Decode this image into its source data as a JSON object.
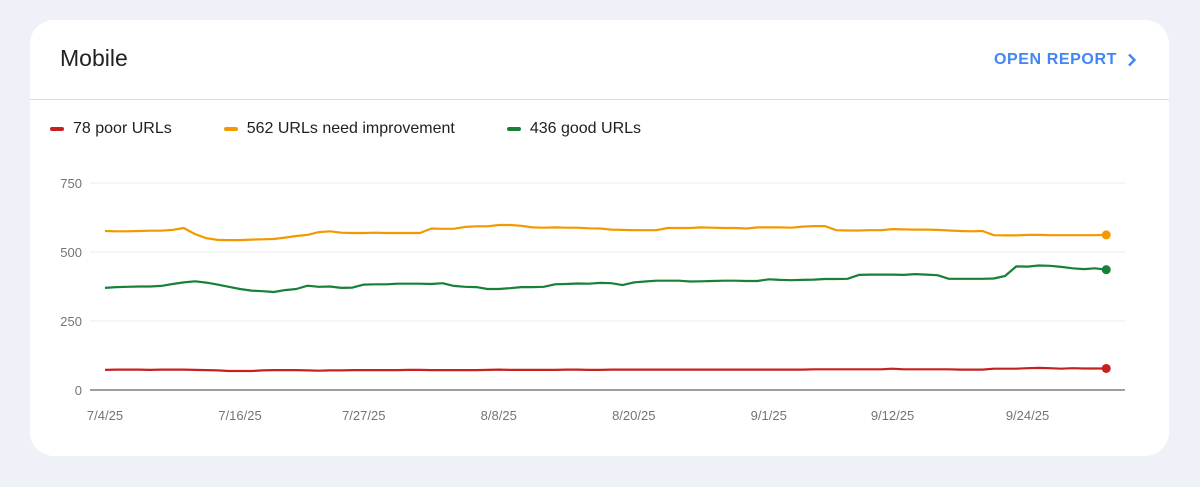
{
  "card": {
    "title": "Mobile",
    "open_report_label": "OPEN REPORT",
    "open_report_icon": "chevron-right-icon"
  },
  "chart_data": {
    "type": "line",
    "title": "",
    "xlabel": "",
    "ylabel": "",
    "ylim": [
      0,
      750
    ],
    "yticks": [
      "0",
      "250",
      "500",
      "750"
    ],
    "xtick_labels": [
      "7/4/25",
      "7/16/25",
      "7/27/25",
      "8/8/25",
      "8/20/25",
      "9/1/25",
      "9/12/25",
      "9/24/25"
    ],
    "grid": true,
    "legend_position": "top-left",
    "legend": [
      "78 poor URLs",
      "562 URLs need improvement",
      "436 good URLs"
    ],
    "x": [
      "7/4/25",
      "7/5/25",
      "7/6/25",
      "7/7/25",
      "7/8/25",
      "7/9/25",
      "7/10/25",
      "7/11/25",
      "7/12/25",
      "7/13/25",
      "7/14/25",
      "7/15/25",
      "7/16/25",
      "7/17/25",
      "7/18/25",
      "7/19/25",
      "7/20/25",
      "7/21/25",
      "7/22/25",
      "7/23/25",
      "7/24/25",
      "7/25/25",
      "7/26/25",
      "7/27/25",
      "7/28/25",
      "7/29/25",
      "7/30/25",
      "7/31/25",
      "8/1/25",
      "8/2/25",
      "8/3/25",
      "8/4/25",
      "8/5/25",
      "8/6/25",
      "8/7/25",
      "8/8/25",
      "8/9/25",
      "8/10/25",
      "8/11/25",
      "8/12/25",
      "8/13/25",
      "8/14/25",
      "8/15/25",
      "8/16/25",
      "8/17/25",
      "8/18/25",
      "8/19/25",
      "8/20/25",
      "8/21/25",
      "8/22/25",
      "8/23/25",
      "8/24/25",
      "8/25/25",
      "8/26/25",
      "8/27/25",
      "8/28/25",
      "8/29/25",
      "8/30/25",
      "8/31/25",
      "9/1/25",
      "9/2/25",
      "9/3/25",
      "9/4/25",
      "9/5/25",
      "9/6/25",
      "9/7/25",
      "9/8/25",
      "9/9/25",
      "9/10/25",
      "9/11/25",
      "9/12/25",
      "9/13/25",
      "9/14/25",
      "9/15/25",
      "9/16/25",
      "9/17/25",
      "9/18/25",
      "9/19/25",
      "9/20/25",
      "9/21/25",
      "9/22/25",
      "9/23/25",
      "9/24/25",
      "9/25/25",
      "9/26/25",
      "9/27/25",
      "9/28/25",
      "9/29/25",
      "9/30/25",
      "10/1/25"
    ],
    "series": [
      {
        "name": "78 poor URLs",
        "color": "#c5221f",
        "values": [
          73,
          74,
          74,
          74,
          73,
          74,
          74,
          74,
          73,
          72,
          71,
          69,
          69,
          69,
          71,
          72,
          72,
          72,
          71,
          70,
          71,
          71,
          72,
          72,
          72,
          72,
          72,
          73,
          73,
          72,
          72,
          72,
          72,
          72,
          73,
          74,
          73,
          73,
          73,
          73,
          73,
          74,
          74,
          73,
          73,
          74,
          74,
          74,
          74,
          74,
          74,
          74,
          74,
          74,
          74,
          74,
          74,
          74,
          74,
          74,
          74,
          74,
          74,
          75,
          75,
          75,
          75,
          75,
          75,
          75,
          77,
          75,
          75,
          75,
          75,
          75,
          74,
          74,
          74,
          77,
          77,
          77,
          79,
          80,
          79,
          77,
          79,
          78,
          78,
          78
        ]
      },
      {
        "name": "562 URLs need improvement",
        "color": "#f29900",
        "values": [
          576,
          575,
          575,
          576,
          577,
          577,
          580,
          587,
          565,
          550,
          544,
          543,
          543,
          545,
          546,
          547,
          552,
          558,
          562,
          572,
          575,
          570,
          569,
          569,
          570,
          569,
          569,
          569,
          569,
          585,
          584,
          584,
          591,
          593,
          593,
          598,
          598,
          595,
          589,
          588,
          589,
          588,
          588,
          586,
          585,
          581,
          580,
          579,
          579,
          579,
          587,
          587,
          587,
          589,
          588,
          587,
          587,
          585,
          589,
          589,
          589,
          588,
          592,
          594,
          594,
          579,
          578,
          578,
          579,
          579,
          583,
          582,
          581,
          581,
          580,
          578,
          576,
          575,
          576,
          561,
          560,
          560,
          562,
          562,
          561,
          561,
          561,
          561,
          561,
          562
        ]
      },
      {
        "name": "436 good URLs",
        "color": "#188038",
        "values": [
          370,
          373,
          374,
          375,
          375,
          377,
          384,
          390,
          394,
          389,
          382,
          374,
          366,
          360,
          358,
          355,
          362,
          366,
          378,
          374,
          375,
          370,
          371,
          382,
          383,
          383,
          385,
          385,
          385,
          384,
          387,
          377,
          374,
          373,
          366,
          366,
          369,
          373,
          373,
          374,
          383,
          384,
          386,
          385,
          388,
          387,
          380,
          390,
          393,
          396,
          396,
          396,
          393,
          394,
          395,
          396,
          396,
          395,
          395,
          401,
          399,
          398,
          399,
          400,
          402,
          402,
          403,
          417,
          418,
          418,
          418,
          417,
          420,
          418,
          416,
          403,
          403,
          403,
          403,
          404,
          413,
          448,
          447,
          451,
          450,
          446,
          441,
          438,
          441,
          436
        ]
      }
    ]
  }
}
